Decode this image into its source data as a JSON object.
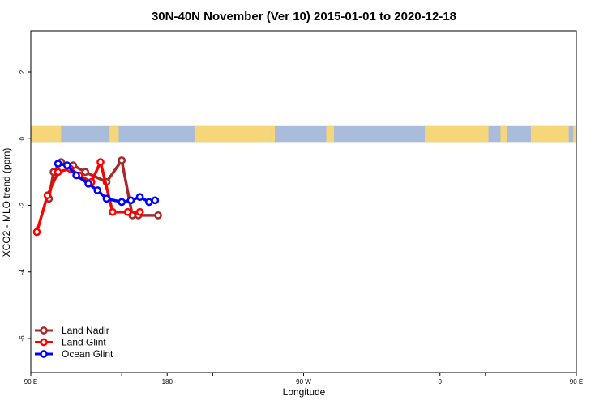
{
  "chart_data": {
    "type": "line",
    "title": "30N-40N November (Ver 10)   2015-01-01 to 2020-12-18",
    "xlabel": "Longitude",
    "ylabel": "XCO2 - MLO trend (ppm)",
    "xlim": [
      90,
      450
    ],
    "ylim": [
      -7,
      3.2
    ],
    "x_ticks": [
      {
        "value": 90,
        "label": "90 E"
      },
      {
        "value": 180,
        "label": "180"
      },
      {
        "value": 270,
        "label": "90 W"
      },
      {
        "value": 360,
        "label": "0"
      },
      {
        "value": 450,
        "label": "90 E"
      },
      {
        "value": 540,
        "label": "180"
      }
    ],
    "y_ticks": [
      {
        "value": 2,
        "label": "2"
      },
      {
        "value": 0,
        "label": "0"
      },
      {
        "value": -2,
        "label": "-2"
      },
      {
        "value": -4,
        "label": "-4"
      },
      {
        "value": -6,
        "label": "-6"
      }
    ],
    "background_map": {
      "land_color": "#f5d77a",
      "ocean_color": "#a9bcd9",
      "y_range": [
        -0.1,
        0.4
      ]
    },
    "legend_position": "bottom-left",
    "series": [
      {
        "name": "Land Nadir",
        "color": "#a52a2a",
        "x": [
          102,
          105,
          110,
          118,
          126,
          140,
          150,
          157,
          161,
          174
        ],
        "y": [
          -1.8,
          -1.0,
          -0.7,
          -0.8,
          -1.0,
          -1.3,
          -0.65,
          -2.3,
          -2.3,
          -2.3
        ]
      },
      {
        "name": "Land Glint",
        "color": "#ff0000",
        "x": [
          94,
          101,
          108,
          116,
          122,
          130,
          136,
          144,
          154,
          162
        ],
        "y": [
          -2.8,
          -1.7,
          -1.0,
          -0.9,
          -1.1,
          -1.3,
          -0.7,
          -2.2,
          -2.2,
          -2.2
        ]
      },
      {
        "name": "Ocean Glint",
        "color": "#0000ff",
        "x": [
          108,
          114,
          120,
          128,
          134,
          140,
          150,
          156,
          162,
          168,
          172
        ],
        "y": [
          -0.75,
          -0.8,
          -1.1,
          -1.35,
          -1.55,
          -1.8,
          -1.9,
          -1.85,
          -1.75,
          -1.9,
          -1.85
        ]
      }
    ]
  }
}
